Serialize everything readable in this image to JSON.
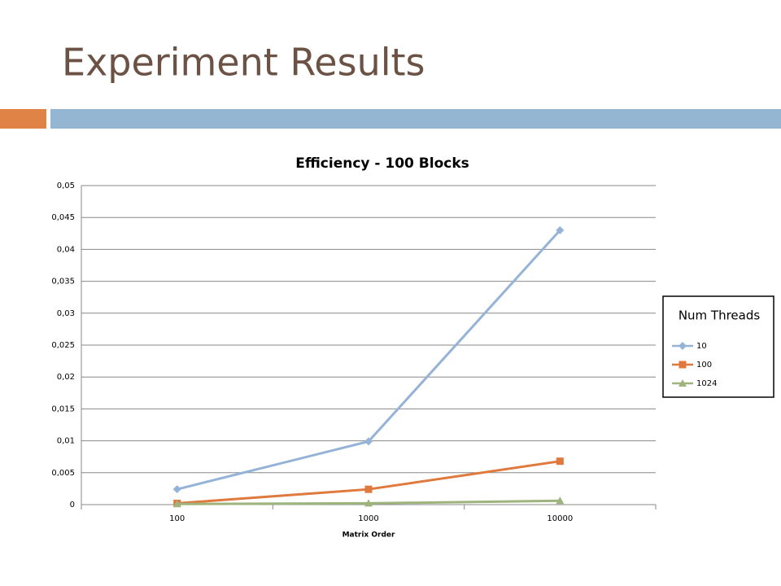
{
  "slide": {
    "title": "Experiment Results"
  },
  "chart_data": {
    "type": "line",
    "title": "Efficiency - 100 Blocks",
    "xlabel": "Matrix Order",
    "categories": [
      "100",
      "1000",
      "10000"
    ],
    "series": [
      {
        "name": "10",
        "color": "#95b3d7",
        "marker": "diamond",
        "values": [
          0.0024,
          0.0099,
          0.043
        ]
      },
      {
        "name": "100",
        "color": "#e0793d",
        "marker": "square",
        "values": [
          0.0002,
          0.0024,
          0.0068
        ]
      },
      {
        "name": "1024",
        "color": "#9fb47c",
        "marker": "triangle",
        "values": [
          0.0001,
          0.0002,
          0.0006
        ]
      }
    ],
    "ylim": [
      0,
      0.05
    ],
    "yticks": [
      0,
      {
        "value": 0.005,
        "label": "0,005"
      },
      {
        "value": 0.01,
        "label": "0,01"
      },
      {
        "value": 0.015,
        "label": "0,015"
      },
      {
        "value": 0.02,
        "label": "0,02"
      },
      {
        "value": 0.025,
        "label": "0,025"
      },
      {
        "value": 0.03,
        "label": "0,03"
      },
      {
        "value": 0.035,
        "label": "0,035"
      },
      {
        "value": 0.04,
        "label": "0,04"
      },
      {
        "value": 0.045,
        "label": "0,045"
      },
      {
        "value": 0.05,
        "label": "0,05"
      }
    ],
    "grid": true,
    "legend_title": "Num Threads",
    "legend_position": "right"
  }
}
